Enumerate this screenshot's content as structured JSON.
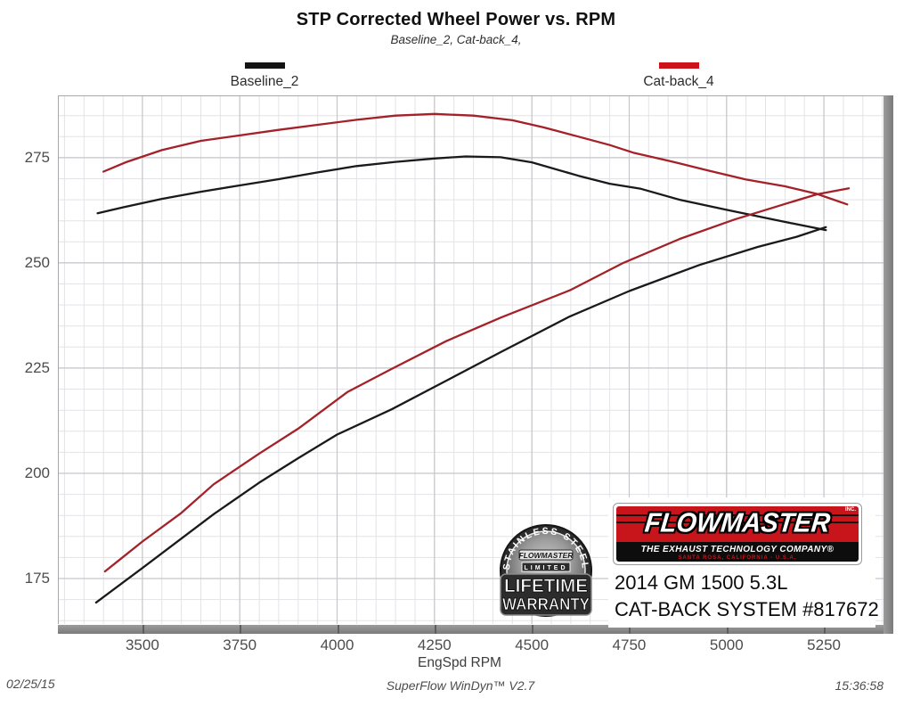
{
  "title": "STP Corrected Wheel Power vs. RPM",
  "subtitle": "Baseline_2, Cat-back_4,",
  "legend": [
    {
      "label": "Baseline_2",
      "color": "#141414"
    },
    {
      "label": "Cat-back_4",
      "color": "#cc1418"
    }
  ],
  "footer": {
    "date": "02/25/15",
    "software": "SuperFlow WinDyn™ V2.7",
    "time": "15:36:58"
  },
  "branding": {
    "brand_red": "#c8151b",
    "logo_text": "FLOWMASTER",
    "logo_inc": "INC.",
    "logo_tagline": "THE EXHAUST TECHNOLOGY COMPANY®",
    "logo_location": "SANTA ROSA, CALIFORNIA - U.S.A.",
    "vehicle_line1": "2014 GM 1500 5.3L",
    "vehicle_line2": "CAT-BACK SYSTEM #817672",
    "badge": {
      "arc_text": "STAINLESS STEEL",
      "brand": "FLOWMASTER",
      "line1": "LIMITED",
      "line2": "LIFETIME",
      "line3": "WARRANTY"
    }
  },
  "chart_data": {
    "type": "line",
    "title": "STP Corrected Wheel Power vs. RPM",
    "xlabel": "EngSpd RPM",
    "ylabel": "",
    "x_ticks": [
      3500,
      3750,
      4000,
      4250,
      4500,
      4750,
      5000,
      5250
    ],
    "y_ticks": [
      175,
      200,
      225,
      250,
      275
    ],
    "x_range": [
      3283,
      5403
    ],
    "y_range": [
      164.2,
      289.8
    ],
    "x_minor_step": 50,
    "y_minor_step": 5,
    "grid": true,
    "legend_position": "top",
    "series": [
      {
        "name": "Baseline_2 power",
        "color": "#1a1a1a",
        "points": [
          [
            3385,
            261.8
          ],
          [
            3450,
            263.2
          ],
          [
            3550,
            265.2
          ],
          [
            3650,
            266.9
          ],
          [
            3750,
            268.4
          ],
          [
            3850,
            269.9
          ],
          [
            3950,
            271.5
          ],
          [
            4050,
            273.0
          ],
          [
            4150,
            274.0
          ],
          [
            4250,
            274.8
          ],
          [
            4330,
            275.3
          ],
          [
            4420,
            275.1
          ],
          [
            4500,
            273.9
          ],
          [
            4620,
            270.7
          ],
          [
            4700,
            268.8
          ],
          [
            4780,
            267.6
          ],
          [
            4880,
            265.0
          ],
          [
            5000,
            262.6
          ],
          [
            5120,
            260.3
          ],
          [
            5255,
            257.8
          ]
        ]
      },
      {
        "name": "Cat-back_4 power",
        "color": "#a42128",
        "points": [
          [
            3400,
            271.7
          ],
          [
            3460,
            274.0
          ],
          [
            3550,
            276.8
          ],
          [
            3650,
            279.0
          ],
          [
            3750,
            280.3
          ],
          [
            3850,
            281.6
          ],
          [
            3950,
            282.8
          ],
          [
            4050,
            284.0
          ],
          [
            4150,
            285.0
          ],
          [
            4250,
            285.4
          ],
          [
            4350,
            285.0
          ],
          [
            4450,
            283.9
          ],
          [
            4530,
            282.2
          ],
          [
            4620,
            280.0
          ],
          [
            4700,
            278.0
          ],
          [
            4760,
            276.2
          ],
          [
            4850,
            274.3
          ],
          [
            4950,
            272.0
          ],
          [
            5050,
            269.8
          ],
          [
            5150,
            268.2
          ],
          [
            5232,
            266.4
          ],
          [
            5310,
            263.9
          ]
        ]
      },
      {
        "name": "Baseline_2 rising",
        "color": "#1a1a1a",
        "points": [
          [
            3381,
            169.3
          ],
          [
            3500,
            177.5
          ],
          [
            3600,
            184.5
          ],
          [
            3683,
            190.3
          ],
          [
            3800,
            197.8
          ],
          [
            3900,
            203.6
          ],
          [
            4000,
            209.2
          ],
          [
            4140,
            215.2
          ],
          [
            4280,
            222.0
          ],
          [
            4420,
            228.8
          ],
          [
            4598,
            237.3
          ],
          [
            4750,
            243.3
          ],
          [
            4930,
            249.5
          ],
          [
            5080,
            253.8
          ],
          [
            5180,
            256.2
          ],
          [
            5255,
            258.5
          ]
        ]
      },
      {
        "name": "Cat-back_4 rising",
        "color": "#a42128",
        "points": [
          [
            3404,
            176.7
          ],
          [
            3500,
            183.8
          ],
          [
            3600,
            190.6
          ],
          [
            3683,
            197.4
          ],
          [
            3800,
            204.7
          ],
          [
            3900,
            210.6
          ],
          [
            4026,
            219.3
          ],
          [
            4140,
            224.8
          ],
          [
            4280,
            231.4
          ],
          [
            4420,
            237.0
          ],
          [
            4598,
            243.5
          ],
          [
            4735,
            250.0
          ],
          [
            4880,
            255.7
          ],
          [
            5020,
            260.3
          ],
          [
            5150,
            264.0
          ],
          [
            5232,
            266.3
          ],
          [
            5314,
            267.7
          ]
        ]
      }
    ]
  }
}
